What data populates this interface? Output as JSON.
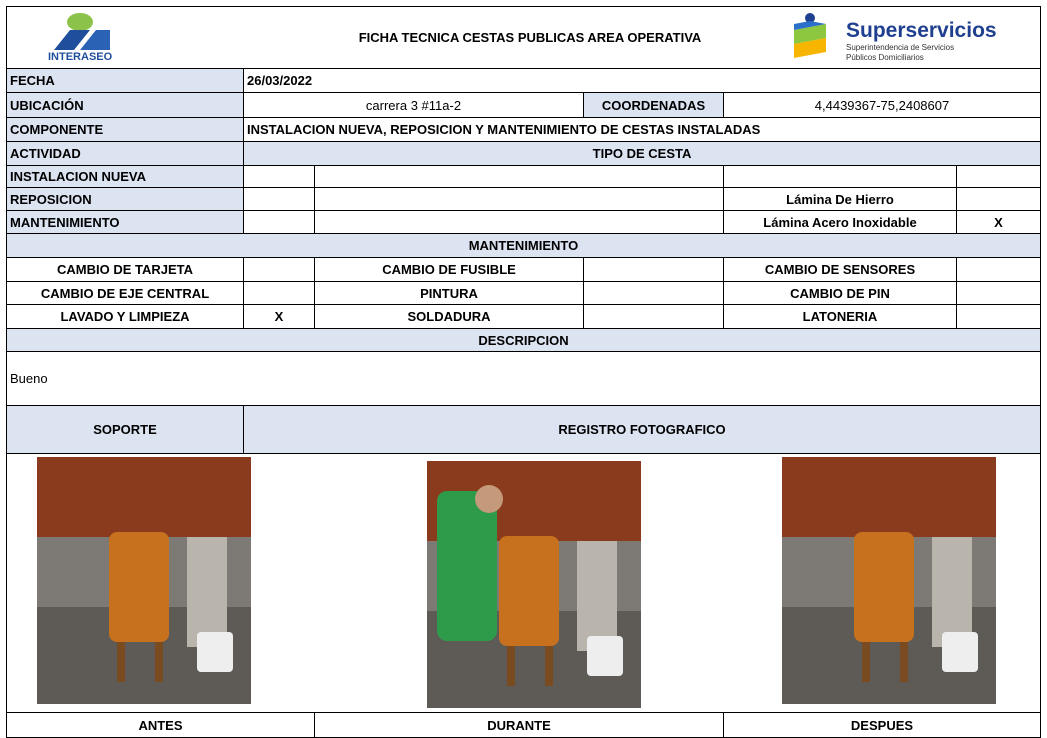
{
  "header": {
    "title": "FICHA TECNICA CESTAS PUBLICAS AREA OPERATIVA",
    "logo_left": "INTERASEO",
    "logo_right": {
      "name": "Superservicios",
      "line1": "Superintendencia de Servicios",
      "line2": "Públicos Domiciliarios"
    }
  },
  "form": {
    "fecha": {
      "label": "FECHA",
      "value": "26/03/2022"
    },
    "ubicacion": {
      "label": "UBICACIÓN",
      "value": "carrera 3 #11a-2"
    },
    "coordenadas": {
      "label": "COORDENADAS",
      "value": "4,4439367-75,2408607"
    },
    "componente": {
      "label": "COMPONENTE",
      "value": "INSTALACION NUEVA, REPOSICION Y MANTENIMIENTO DE CESTAS INSTALADAS"
    },
    "actividad": {
      "label": "ACTIVIDAD",
      "options": [
        "INSTALACION NUEVA",
        "REPOSICION",
        "MANTENIMIENTO"
      ]
    },
    "tipo_cesta": {
      "label": "TIPO DE CESTA",
      "options": [
        {
          "label": "Lámina De Hierro"
        },
        {
          "label": "Lámina Acero Inoxidable",
          "check": "X"
        }
      ]
    },
    "mantenimiento": {
      "label": "MANTENIMIENTO",
      "rows": [
        [
          {
            "label": "CAMBIO DE TARJETA"
          },
          {
            "label": "CAMBIO DE FUSIBLE"
          },
          {
            "label": "CAMBIO DE SENSORES"
          }
        ],
        [
          {
            "label": "CAMBIO DE EJE CENTRAL"
          },
          {
            "label": "PINTURA"
          },
          {
            "label": "CAMBIO DE PIN"
          }
        ],
        [
          {
            "label": "LAVADO Y LIMPIEZA",
            "check": "X"
          },
          {
            "label": "SOLDADURA"
          },
          {
            "label": "LATONERIA"
          }
        ]
      ]
    },
    "descripcion": {
      "label": "DESCRIPCION",
      "text": "Bueno"
    },
    "soporte": {
      "label": "SOPORTE"
    },
    "registro": {
      "label": "REGISTRO FOTOGRAFICO",
      "photos": [
        {
          "caption": "ANTES"
        },
        {
          "caption": "DURANTE"
        },
        {
          "caption": "DESPUES"
        }
      ]
    }
  }
}
